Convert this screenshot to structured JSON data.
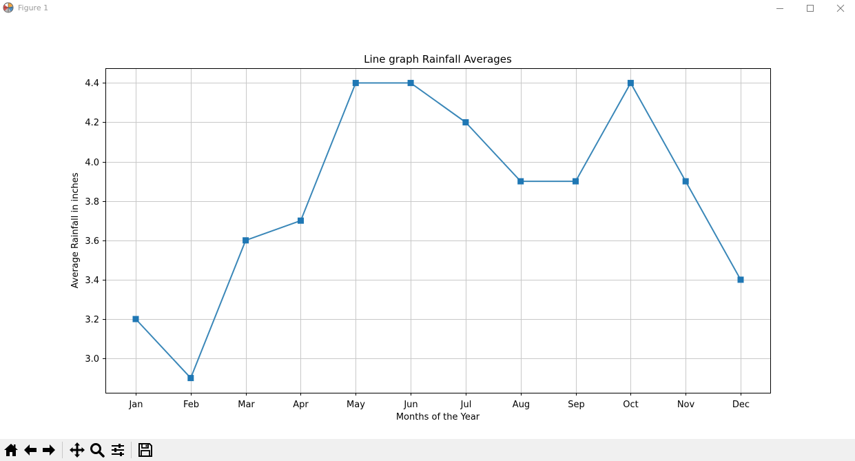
{
  "window": {
    "title": "Figure 1",
    "icon": "matplotlib-logo-icon",
    "controls": [
      "minimize-icon",
      "maximize-icon",
      "close-icon"
    ]
  },
  "toolbar": {
    "tools": [
      {
        "name": "home",
        "icon": "home-icon"
      },
      {
        "name": "back",
        "icon": "arrow-left-icon"
      },
      {
        "name": "forward",
        "icon": "arrow-right-icon"
      },
      {
        "name": "pan",
        "icon": "move-icon"
      },
      {
        "name": "zoom",
        "icon": "magnifier-icon"
      },
      {
        "name": "subplots",
        "icon": "sliders-icon"
      },
      {
        "name": "save",
        "icon": "floppy-disk-icon"
      }
    ]
  },
  "colors": {
    "line": "#3a87b8",
    "marker": "#1f77b4",
    "grid": "#c8c8c8",
    "axes": "#000000",
    "toolbar_bg": "#f0f0f0"
  },
  "chart_data": {
    "type": "line",
    "title": "Line graph Rainfall Averages",
    "xlabel": "Months of the Year",
    "ylabel": "Average Rainfall in inches",
    "categories": [
      "Jan",
      "Feb",
      "Mar",
      "Apr",
      "May",
      "Jun",
      "Jul",
      "Aug",
      "Sep",
      "Oct",
      "Nov",
      "Dec"
    ],
    "values": [
      3.2,
      2.9,
      3.6,
      3.7,
      4.4,
      4.4,
      4.2,
      3.9,
      3.9,
      4.4,
      3.9,
      3.4
    ],
    "yticks": [
      "3.0",
      "3.2",
      "3.4",
      "3.6",
      "3.8",
      "4.0",
      "4.2",
      "4.4"
    ],
    "ylim": [
      2.825,
      4.475
    ],
    "marker": "square",
    "grid": true,
    "legend": "none"
  }
}
